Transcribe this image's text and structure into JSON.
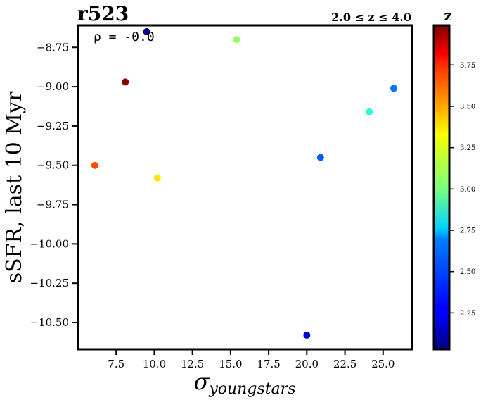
{
  "chart_data": {
    "type": "scatter",
    "title": "r523",
    "subtitle": "2.0 ≤ z ≤ 4.0",
    "annotation": "ρ = -0.0",
    "xlabel": "σyoungstars",
    "xlabel_main": "σ",
    "xlabel_sub": "youngstars",
    "ylabel": "sSFR, last 10 Myr",
    "xlim": [
      5.0,
      26.9
    ],
    "ylim": [
      -10.67,
      -8.61
    ],
    "xticks": [
      7.5,
      10.0,
      12.5,
      15.0,
      17.5,
      20.0,
      22.5,
      25.0
    ],
    "xtick_labels": [
      "7.5",
      "10.0",
      "12.5",
      "15.0",
      "17.5",
      "20.0",
      "22.5",
      "25.0"
    ],
    "yticks": [
      -8.75,
      -9.0,
      -9.25,
      -9.5,
      -9.75,
      -10.0,
      -10.25,
      -10.5
    ],
    "ytick_labels": [
      "−8.75",
      "−9.00",
      "−9.25",
      "−9.50",
      "−9.75",
      "−10.00",
      "−10.25",
      "−10.50"
    ],
    "grid": false,
    "colorbar": {
      "label": "z",
      "colormap": "jet",
      "range": [
        2.03,
        3.99
      ],
      "ticks": [
        2.25,
        2.5,
        2.75,
        3.0,
        3.25,
        3.5,
        3.75
      ],
      "tick_labels": [
        "2.25",
        "2.50",
        "2.75",
        "3.00",
        "3.25",
        "3.50",
        "3.75"
      ]
    },
    "points": [
      {
        "x": 6.1,
        "y": -9.5,
        "z": 3.6
      },
      {
        "x": 8.1,
        "y": -8.97,
        "z": 3.97
      },
      {
        "x": 9.5,
        "y": -8.65,
        "z": 2.05
      },
      {
        "x": 10.2,
        "y": -9.58,
        "z": 3.3
      },
      {
        "x": 15.4,
        "y": -8.7,
        "z": 3.05
      },
      {
        "x": 20.0,
        "y": -10.58,
        "z": 2.2
      },
      {
        "x": 20.9,
        "y": -9.45,
        "z": 2.45
      },
      {
        "x": 24.1,
        "y": -9.16,
        "z": 2.85
      },
      {
        "x": 25.7,
        "y": -9.01,
        "z": 2.5
      }
    ]
  }
}
